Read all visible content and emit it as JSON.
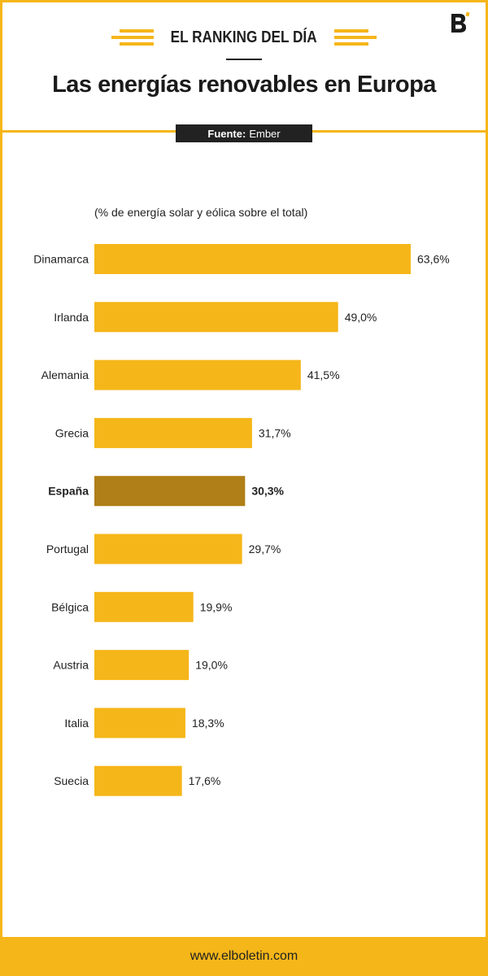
{
  "header": {
    "kicker": "EL RANKING DEL DÍA",
    "title": "Las energías renovables en Europa",
    "source_label": "Fuente:",
    "source_value": "Ember"
  },
  "footer": {
    "url": "www.elboletin.com"
  },
  "colors": {
    "bar": "#f5b619",
    "highlight": "#b07f17",
    "text": "#222222"
  },
  "chart_data": {
    "type": "bar",
    "orientation": "horizontal",
    "title": "Las energías renovables en Europa",
    "subtitle": "(% de energía solar y eólica sobre el total)",
    "categories": [
      "Dinamarca",
      "Irlanda",
      "Alemania",
      "Grecia",
      "España",
      "Portugal",
      "Bélgica",
      "Austria",
      "Italia",
      "Suecia"
    ],
    "values": [
      63.6,
      49.0,
      41.5,
      31.7,
      30.3,
      29.7,
      19.9,
      19.0,
      18.3,
      17.6
    ],
    "value_labels": [
      "63,6%",
      "49,0%",
      "41,5%",
      "31,7%",
      "30,3%",
      "29,7%",
      "19,9%",
      "19,0%",
      "18,3%",
      "17,6%"
    ],
    "highlight": "España",
    "xlim": [
      0,
      63.6
    ],
    "grid": false,
    "legend": "none"
  }
}
